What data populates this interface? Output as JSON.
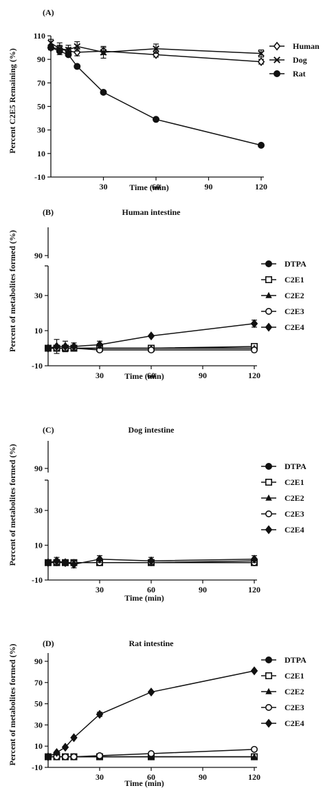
{
  "chart_data": [
    {
      "id": "A",
      "type": "line",
      "panel_label": "(A)",
      "title": "",
      "xlabel": "Time (min)",
      "ylabel": "Percent C2E5 Remaining (%)",
      "xticks": [
        30,
        60,
        90,
        120
      ],
      "yticks": [
        -10,
        10,
        30,
        50,
        70,
        90,
        110
      ],
      "xlim": [
        0,
        120
      ],
      "ylim": [
        -10,
        110
      ],
      "legend_position": "right",
      "series": [
        {
          "name": "Human",
          "marker": "diamond-open",
          "x": [
            0,
            5,
            10,
            15,
            30,
            60,
            120
          ],
          "y": [
            100,
            99,
            97,
            96,
            97,
            94,
            88
          ],
          "err": [
            2,
            3,
            3,
            3,
            3,
            2,
            2
          ]
        },
        {
          "name": "Dog",
          "marker": "x",
          "x": [
            0,
            5,
            10,
            15,
            30,
            60,
            120
          ],
          "y": [
            104,
            99,
            98,
            101,
            96,
            99,
            95
          ],
          "err": [
            3,
            5,
            4,
            4,
            5,
            4,
            3
          ]
        },
        {
          "name": "Rat",
          "marker": "circle",
          "x": [
            0,
            5,
            10,
            15,
            30,
            60,
            120
          ],
          "y": [
            100,
            97,
            94,
            84,
            62,
            39,
            17
          ],
          "err": [
            0,
            0,
            0,
            0,
            0,
            0,
            0
          ]
        }
      ]
    },
    {
      "id": "B",
      "type": "line",
      "panel_label": "(B)",
      "title": "Human intestine",
      "xlabel": "Time (min)",
      "ylabel": "Percent of metabolites formed (%)",
      "xticks": [
        30,
        60,
        90,
        120
      ],
      "yticks": [
        -10,
        10,
        30,
        90
      ],
      "xlim": [
        0,
        120
      ],
      "ylim": [
        -10,
        90
      ],
      "legend_position": "right",
      "series": [
        {
          "name": "DTPA",
          "marker": "circle",
          "x": [
            0,
            5,
            10,
            15,
            30,
            60,
            120
          ],
          "y": [
            0,
            0,
            0,
            0,
            0,
            0,
            0
          ],
          "err": [
            0,
            0,
            0,
            0,
            0,
            0,
            0
          ]
        },
        {
          "name": "C2E1",
          "marker": "square-open",
          "x": [
            0,
            5,
            10,
            15,
            30,
            60,
            120
          ],
          "y": [
            0,
            0,
            0,
            0,
            0,
            0,
            1
          ],
          "err": [
            0,
            0,
            0,
            0,
            0,
            0,
            1
          ]
        },
        {
          "name": "C2E2",
          "marker": "triangle",
          "x": [
            0,
            5,
            10,
            15,
            30,
            60,
            120
          ],
          "y": [
            0,
            0,
            0,
            0,
            0,
            0,
            0
          ],
          "err": [
            0,
            0,
            0,
            0,
            0,
            0,
            0
          ]
        },
        {
          "name": "C2E3",
          "marker": "circle-open",
          "x": [
            0,
            5,
            10,
            15,
            30,
            60,
            120
          ],
          "y": [
            0,
            0,
            0,
            0,
            -1,
            -1,
            -1
          ],
          "err": [
            0,
            0,
            0,
            0,
            0,
            0,
            0
          ]
        },
        {
          "name": "C2E4",
          "marker": "diamond",
          "x": [
            0,
            5,
            10,
            15,
            30,
            60,
            120
          ],
          "y": [
            0,
            1,
            1,
            1,
            2,
            7,
            14
          ],
          "err": [
            0,
            4,
            3,
            2,
            2,
            0,
            2
          ]
        }
      ]
    },
    {
      "id": "C",
      "type": "line",
      "panel_label": "(C)",
      "title": "Dog intestine",
      "xlabel": "Time (min)",
      "ylabel": "Percent of metabolites formed (%)",
      "xticks": [
        30,
        60,
        90,
        120
      ],
      "yticks": [
        -10,
        10,
        30,
        90
      ],
      "xlim": [
        0,
        120
      ],
      "ylim": [
        -10,
        90
      ],
      "legend_position": "right",
      "series": [
        {
          "name": "DTPA",
          "marker": "circle",
          "x": [
            0,
            5,
            10,
            15,
            30,
            60,
            120
          ],
          "y": [
            0,
            0,
            0,
            0,
            0,
            0,
            0
          ],
          "err": [
            0,
            0,
            0,
            0,
            0,
            0,
            0
          ]
        },
        {
          "name": "C2E1",
          "marker": "square-open",
          "x": [
            0,
            5,
            10,
            15,
            30,
            60,
            120
          ],
          "y": [
            0,
            0,
            0,
            0,
            0,
            0,
            0
          ],
          "err": [
            0,
            0,
            0,
            0,
            0,
            0,
            0
          ]
        },
        {
          "name": "C2E2",
          "marker": "triangle",
          "x": [
            0,
            5,
            10,
            15,
            30,
            60,
            120
          ],
          "y": [
            0,
            0,
            0,
            0,
            0,
            0,
            1
          ],
          "err": [
            0,
            0,
            0,
            0,
            0,
            0,
            0
          ]
        },
        {
          "name": "C2E3",
          "marker": "circle-open",
          "x": [
            0,
            5,
            10,
            15,
            30,
            60,
            120
          ],
          "y": [
            0,
            0,
            0,
            0,
            0,
            0,
            0
          ],
          "err": [
            0,
            0,
            0,
            0,
            0,
            0,
            0
          ]
        },
        {
          "name": "C2E4",
          "marker": "diamond",
          "x": [
            0,
            5,
            10,
            15,
            30,
            60,
            120
          ],
          "y": [
            0,
            1,
            0,
            -1,
            2,
            1,
            2
          ],
          "err": [
            0,
            2,
            1,
            2,
            2,
            2,
            2
          ]
        }
      ]
    },
    {
      "id": "D",
      "type": "line",
      "panel_label": "(D)",
      "title": "Rat intestine",
      "xlabel": "Time (min)",
      "ylabel": "Percent of metabolites formed (%)",
      "xticks": [
        30,
        60,
        90,
        120
      ],
      "yticks": [
        -10,
        10,
        30,
        50,
        70,
        90
      ],
      "xlim": [
        0,
        120
      ],
      "ylim": [
        -10,
        100
      ],
      "legend_position": "right",
      "series": [
        {
          "name": "DTPA",
          "marker": "circle",
          "x": [
            0,
            5,
            10,
            15,
            30,
            60,
            120
          ],
          "y": [
            0,
            0,
            0,
            0,
            0,
            0,
            0
          ],
          "err": [
            0,
            0,
            0,
            0,
            0,
            0,
            0
          ]
        },
        {
          "name": "C2E1",
          "marker": "square-open",
          "x": [
            0,
            5,
            10,
            15,
            30,
            60,
            120
          ],
          "y": [
            0,
            0,
            0,
            0,
            0,
            0,
            0
          ],
          "err": [
            0,
            0,
            0,
            0,
            0,
            0,
            0
          ]
        },
        {
          "name": "C2E2",
          "marker": "triangle",
          "x": [
            0,
            5,
            10,
            15,
            30,
            60,
            120
          ],
          "y": [
            0,
            0,
            0,
            0,
            0,
            0,
            0
          ],
          "err": [
            0,
            0,
            0,
            0,
            0,
            0,
            0
          ]
        },
        {
          "name": "C2E3",
          "marker": "circle-open",
          "x": [
            0,
            5,
            10,
            15,
            30,
            60,
            120
          ],
          "y": [
            0,
            0,
            0,
            0,
            1,
            3,
            7
          ],
          "err": [
            0,
            0,
            0,
            0,
            0,
            0,
            0
          ]
        },
        {
          "name": "C2E4",
          "marker": "diamond",
          "x": [
            0,
            5,
            10,
            15,
            30,
            60,
            120
          ],
          "y": [
            0,
            4,
            9,
            18,
            40,
            61,
            81
          ],
          "err": [
            0,
            0,
            0,
            0,
            2,
            0,
            0
          ]
        }
      ]
    }
  ]
}
